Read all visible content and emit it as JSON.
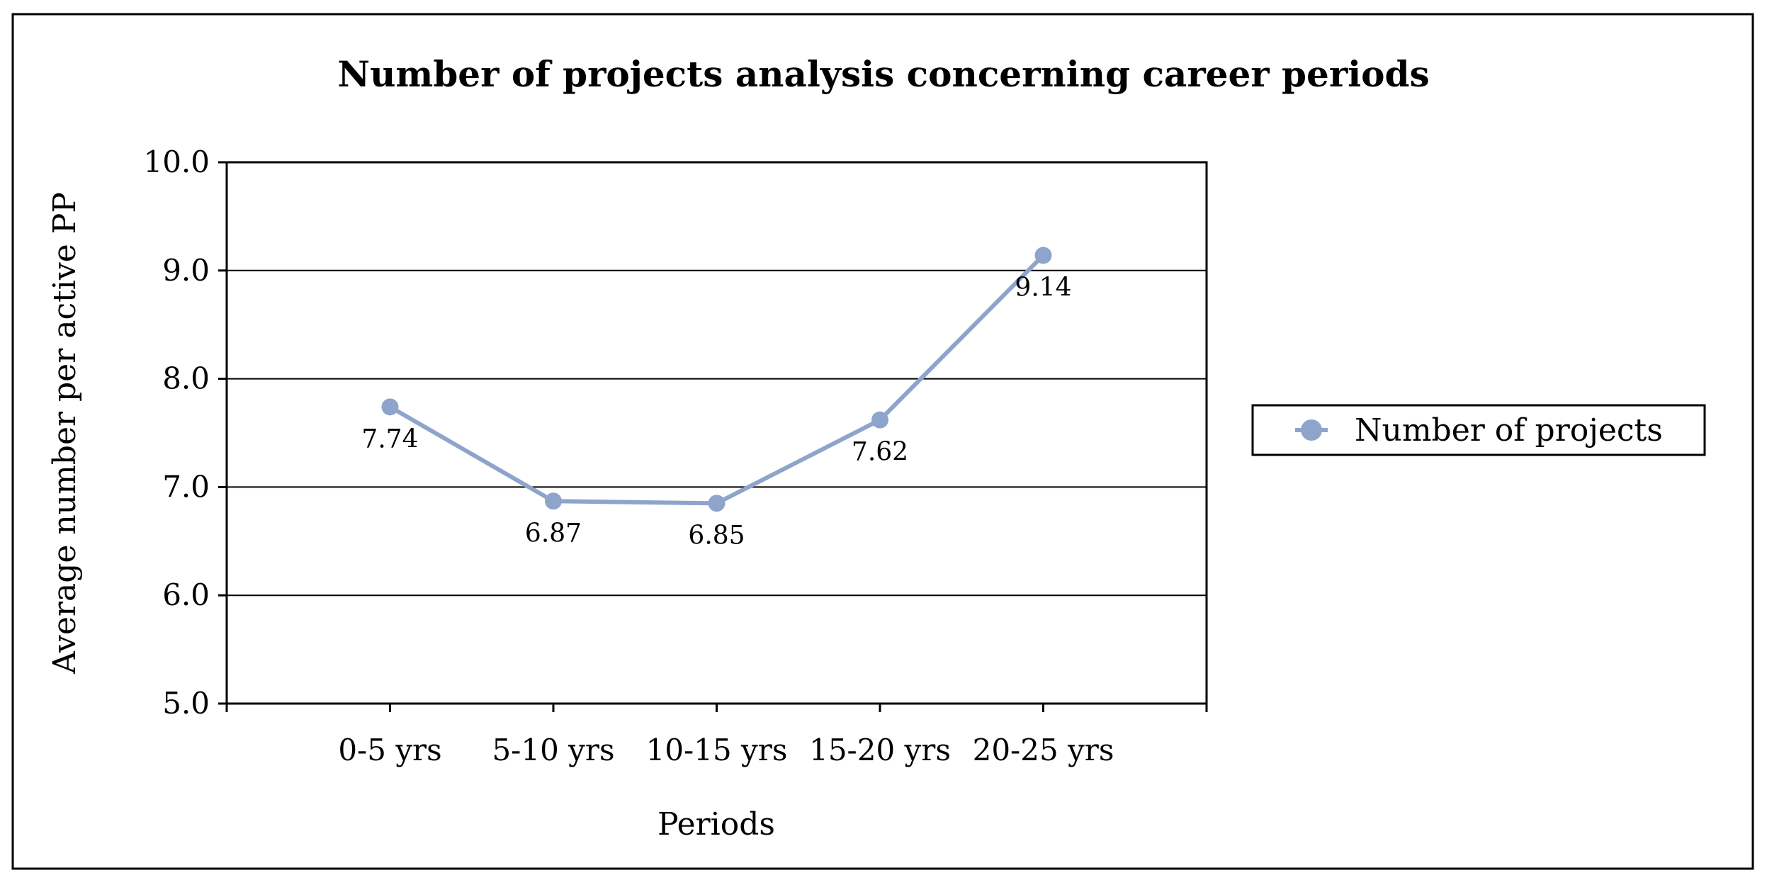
{
  "chart_data": {
    "type": "line",
    "title": "Number of projects analysis concerning career periods",
    "xlabel": "Periods",
    "ylabel": "Average number per active PP",
    "categories": [
      "0-5 yrs",
      "5-10 yrs",
      "10-15 yrs",
      "15-20 yrs",
      "20-25 yrs"
    ],
    "series": [
      {
        "name": "Number of projects",
        "values": [
          7.74,
          6.87,
          6.85,
          7.62,
          9.14
        ],
        "color": "#8ea4cb"
      }
    ],
    "data_labels": [
      "7.74",
      "6.87",
      "6.85",
      "7.62",
      "9.14"
    ],
    "ylim": [
      5.0,
      10.0
    ],
    "yticks": [
      "5.0",
      "6.0",
      "7.0",
      "8.0",
      "9.0",
      "10.0"
    ],
    "grid": true,
    "legend_position": "right"
  }
}
